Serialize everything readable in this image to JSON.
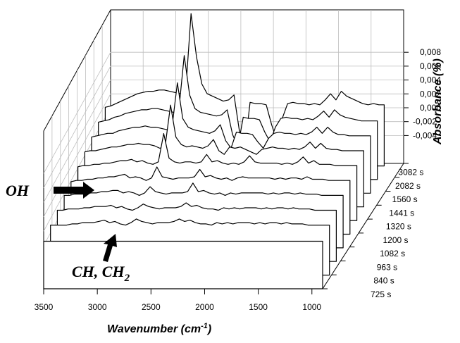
{
  "chart_data": {
    "type": "line",
    "x": [
      3500,
      3450,
      3400,
      3350,
      3300,
      3250,
      3200,
      3150,
      3100,
      3050,
      3000,
      2950,
      2900,
      2850,
      2800,
      2750,
      2700,
      2650,
      2600,
      2550,
      2500,
      2450,
      2400,
      2350,
      2300,
      2250,
      2200,
      2150,
      2100,
      2050,
      2000,
      1950,
      1900,
      1850,
      1800,
      1750,
      1700,
      1650,
      1600,
      1550,
      1500,
      1450,
      1400,
      1350,
      1300,
      1250,
      1200,
      1150,
      1100,
      1050,
      1000,
      950,
      900
    ],
    "series": [
      {
        "name": "725 s",
        "values": [
          -0.001,
          -0.001,
          -0.001,
          -0.001,
          -0.001,
          -0.001,
          -0.001,
          -0.001,
          -0.001,
          -0.001,
          -0.001,
          -0.001,
          -0.001,
          -0.001,
          -0.001,
          -0.001,
          -0.001,
          -0.001,
          -0.001,
          -0.001,
          -0.001,
          -0.001,
          -0.001,
          -0.001,
          -0.001,
          -0.001,
          -0.001,
          -0.001,
          -0.001,
          -0.001,
          -0.001,
          -0.001,
          -0.001,
          -0.001,
          -0.001,
          -0.001,
          -0.001,
          -0.001,
          -0.001,
          -0.001,
          -0.001,
          -0.001,
          -0.001,
          -0.001,
          -0.001,
          -0.001,
          -0.001,
          -0.001,
          -0.001,
          -0.001,
          -0.001,
          -0.001,
          -0.001
        ]
      },
      {
        "name": "840 s",
        "values": [
          -0.0008,
          -0.0008,
          -0.0008,
          -0.0008,
          -0.0007,
          -0.0007,
          -0.0006,
          -0.0006,
          -0.0006,
          -0.0005,
          -0.0004,
          -0.0006,
          -0.0005,
          -0.0007,
          -0.0008,
          -0.0006,
          -0.0003,
          -0.0005,
          -0.0006,
          -0.0007,
          -0.0006,
          -0.0006,
          -0.0006,
          -0.0005,
          -0.0003,
          -0.0005,
          -0.0004,
          -0.0006,
          -0.0007,
          -0.0007,
          -0.0008,
          -0.0006,
          -0.0007,
          -0.0006,
          -0.0007,
          -0.0006,
          -0.0006,
          -0.0006,
          -0.0007,
          -0.0006,
          -0.0007,
          -0.0006,
          -0.0006,
          -0.0007,
          -0.0006,
          -0.0007,
          -0.0007,
          -0.0007,
          -0.0008,
          -0.0008,
          -0.0008,
          -0.0008,
          -0.0008
        ]
      },
      {
        "name": "963 s",
        "values": [
          -0.0007,
          -0.0007,
          -0.0006,
          -0.0006,
          -0.0006,
          -0.0005,
          -0.0005,
          -0.0004,
          -0.0004,
          -0.0004,
          -0.0003,
          -0.0005,
          -0.0004,
          -0.0006,
          -0.0007,
          -0.0005,
          -0.0002,
          -0.0004,
          -0.0005,
          -0.0006,
          -0.0005,
          -0.0005,
          -0.0005,
          -0.0004,
          -0.0001,
          -0.0004,
          -0.0003,
          -0.0005,
          -0.0006,
          -0.0006,
          -0.0007,
          -0.0005,
          -0.0006,
          -0.0005,
          -0.0006,
          -0.0005,
          -0.0005,
          -0.0005,
          -0.0006,
          -0.0005,
          -0.0006,
          -0.0005,
          -0.0005,
          -0.0006,
          -0.0005,
          -0.0006,
          -0.0006,
          -0.0006,
          -0.0007,
          -0.0007,
          -0.0007,
          -0.0007,
          -0.0007
        ]
      },
      {
        "name": "1082 s",
        "values": [
          -0.0006,
          -0.0006,
          -0.0005,
          -0.0005,
          -0.0005,
          -0.0004,
          -0.0004,
          -0.0003,
          -0.0003,
          -0.0002,
          -0.0002,
          -0.0004,
          -0.0003,
          -0.0004,
          -0.0006,
          -0.0004,
          0.0001,
          -0.0003,
          -0.0004,
          -0.0005,
          -0.0004,
          -0.0004,
          -0.0004,
          -0.0003,
          0.0004,
          -0.0003,
          -0.0002,
          -0.0004,
          -0.0005,
          -0.0004,
          -0.0006,
          -0.0004,
          -0.0005,
          -0.0004,
          -0.0004,
          -0.0004,
          -0.0004,
          -0.0004,
          -0.0005,
          -0.0004,
          -0.0005,
          -0.0004,
          -0.0004,
          -0.0005,
          -0.0004,
          -0.0005,
          -0.0005,
          -0.0005,
          -0.0006,
          -0.0006,
          -0.0006,
          -0.0006,
          -0.0006
        ]
      },
      {
        "name": "1200 s",
        "values": [
          -0.0006,
          -0.0005,
          -0.0005,
          -0.0004,
          -0.0004,
          -0.0003,
          -0.0003,
          -0.0002,
          -0.0002,
          -0.0001,
          0.0,
          -0.0003,
          -0.0002,
          -0.0003,
          -0.0005,
          -0.0003,
          0.0006,
          -0.0002,
          -0.0003,
          -0.0004,
          -0.0003,
          -0.0003,
          -0.0003,
          -0.0002,
          0.0004,
          -0.0002,
          -0.0001,
          -0.0003,
          -0.0004,
          -0.0003,
          -0.0005,
          -0.0003,
          -0.0002,
          -0.0003,
          -0.0003,
          -0.0003,
          -0.0003,
          -0.0003,
          -0.0004,
          -0.0003,
          -0.0004,
          -0.0003,
          -0.0003,
          -0.0004,
          -0.0002,
          -0.0004,
          -0.0004,
          -0.0004,
          -0.0005,
          -0.0005,
          -0.0005,
          -0.0005,
          -0.0005
        ]
      },
      {
        "name": "1320 s",
        "values": [
          -0.0005,
          -0.0004,
          -0.0004,
          -0.0003,
          -0.0003,
          -0.0002,
          -0.0002,
          -0.0001,
          0.0,
          0.0,
          0.0001,
          -0.0001,
          0.0,
          -0.0002,
          -0.0003,
          -0.0001,
          0.0022,
          0.0002,
          -0.0001,
          -0.0002,
          -0.0001,
          -0.0001,
          -0.0002,
          -0.0001,
          0.0005,
          -0.0001,
          0.0,
          -0.0002,
          -0.0003,
          -0.0002,
          -0.0003,
          -0.0001,
          0.0004,
          -0.0001,
          -0.0002,
          -0.0002,
          -0.0002,
          -0.0002,
          -0.0003,
          -0.0002,
          -0.0003,
          -0.0001,
          0.0003,
          -0.0002,
          0.0,
          -0.0003,
          -0.0003,
          -0.0003,
          -0.0004,
          -0.0004,
          -0.0004,
          -0.0004,
          -0.0004
        ]
      },
      {
        "name": "1441 s",
        "values": [
          -0.0004,
          -0.0003,
          -0.0003,
          -0.0002,
          -0.0001,
          0.0,
          0.0,
          0.0001,
          0.0002,
          0.0002,
          0.0003,
          0.0002,
          0.0002,
          0.0001,
          -0.0001,
          0.0001,
          0.0034,
          0.0008,
          0.0002,
          0.0,
          0.0001,
          0.0,
          -0.0001,
          0.0001,
          0.0006,
          -0.0003,
          -0.0006,
          0.0,
          -0.0001,
          0.0,
          -0.0002,
          -0.0004,
          -0.0006,
          -0.0002,
          -0.0001,
          0.0,
          -0.0001,
          -0.0001,
          -0.0002,
          -0.0001,
          -0.0002,
          0.0,
          0.0004,
          -0.0001,
          0.0003,
          -0.0001,
          -0.0002,
          -0.0002,
          -0.0003,
          -0.0003,
          -0.0003,
          -0.0003,
          -0.0003
        ]
      },
      {
        "name": "1560 s",
        "values": [
          -0.0003,
          -0.0002,
          -0.0001,
          0.0,
          0.0,
          0.0002,
          0.0003,
          0.0004,
          0.0005,
          0.0005,
          0.0006,
          0.0005,
          0.0005,
          0.0004,
          0.0003,
          0.0005,
          0.0041,
          0.0012,
          0.0005,
          0.0003,
          0.0002,
          0.0001,
          0.0,
          0.0002,
          0.0007,
          -0.0006,
          -0.0012,
          0.0001,
          0.0,
          0.0,
          -0.0001,
          -0.0007,
          -0.0012,
          -0.0004,
          0.0,
          0.0001,
          0.0,
          0.0,
          -0.0001,
          0.0,
          -0.0001,
          0.0001,
          0.0005,
          0.0,
          0.0005,
          0.0001,
          -0.0001,
          -0.0001,
          -0.0002,
          -0.0002,
          -0.0002,
          -0.0002,
          -0.0002
        ]
      },
      {
        "name": "2082 s",
        "values": [
          -0.0002,
          -0.0001,
          0.0,
          0.0002,
          0.0003,
          0.0005,
          0.0006,
          0.0007,
          0.0008,
          0.0008,
          0.0009,
          0.0009,
          0.0008,
          0.0007,
          0.0006,
          0.0008,
          0.0052,
          0.002,
          0.0009,
          0.0006,
          0.0005,
          0.0004,
          0.0003,
          0.0004,
          0.0008,
          -0.0012,
          -0.0022,
          0.0002,
          0.0001,
          0.0001,
          0.0,
          -0.001,
          -0.0018,
          -0.0006,
          0.0001,
          0.0002,
          0.0001,
          0.0001,
          0.0,
          0.0001,
          0.0,
          0.0003,
          0.0007,
          0.0002,
          0.0008,
          0.0004,
          0.0002,
          0.0001,
          0.0,
          -0.0001,
          -0.0001,
          -0.0001,
          -0.0001
        ]
      },
      {
        "name": "3082 s",
        "values": [
          -0.0001,
          0.0,
          0.0002,
          0.0004,
          0.0006,
          0.0008,
          0.001,
          0.0011,
          0.0012,
          0.0012,
          0.0013,
          0.0013,
          0.0012,
          0.0011,
          0.001,
          0.0012,
          0.0075,
          0.004,
          0.0018,
          0.001,
          0.0008,
          0.0006,
          0.0004,
          0.0005,
          0.0009,
          -0.002,
          -0.0035,
          0.0003,
          0.0002,
          0.0002,
          0.0001,
          -0.0015,
          -0.0028,
          -0.001,
          0.0002,
          0.0003,
          0.0002,
          0.0002,
          0.0001,
          0.0002,
          0.0001,
          0.0005,
          0.001,
          0.0005,
          0.0012,
          0.0008,
          0.0006,
          0.0004,
          0.0002,
          0.0001,
          0.0002,
          0.0001,
          0.0001
        ]
      }
    ],
    "title": "",
    "xlabel": "Wavenumber (cm",
    "xlabel_sup": "-1",
    "xlabel_close": ")",
    "ylabel": "Absorbance (%)",
    "xticks": [
      "3500",
      "3000",
      "2500",
      "2000",
      "1500",
      "1000"
    ],
    "xlim": [
      3500,
      900
    ],
    "zticks": [
      "0,008",
      "0,006",
      "0,004",
      "0,002",
      "0,000",
      "-0,002",
      "-0,004"
    ],
    "zlim": [
      -0.005,
      0.008
    ],
    "depth_labels": [
      "3082 s",
      "2082 s",
      "1560 s",
      "1441 s",
      "1320 s",
      "1200 s",
      "1082 s",
      "963 s",
      "840 s",
      "725 s"
    ],
    "annotations": [
      {
        "label": "OH",
        "arrow": "right"
      },
      {
        "label": "CH, CH",
        "sub": "2",
        "arrow": "up"
      }
    ],
    "grid": true
  }
}
